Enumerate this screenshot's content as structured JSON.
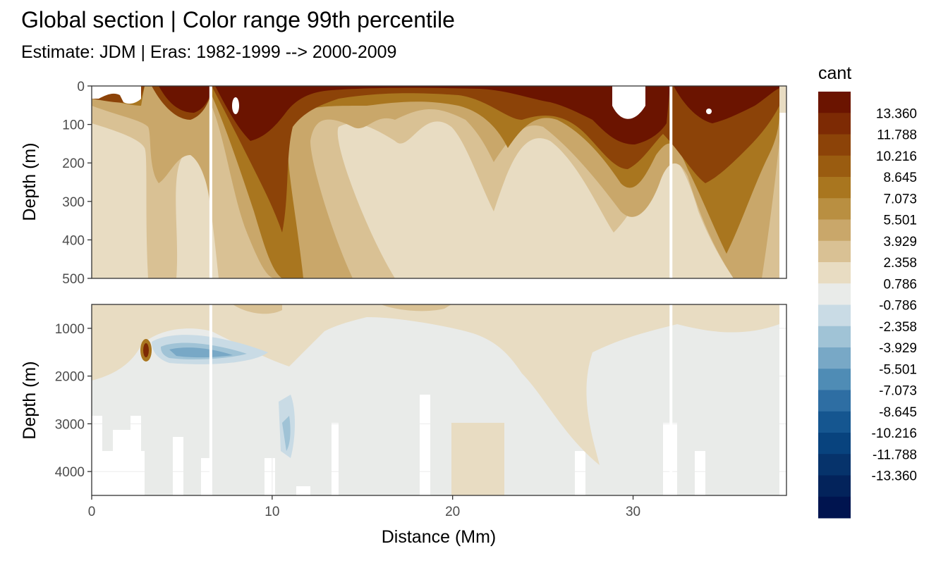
{
  "title": "Global section | Color range 99th percentile",
  "subtitle": "Estimate: JDM  | Eras: 1982-1999 --> 2000-2009",
  "chart_data": {
    "type": "heatmap",
    "x": {
      "label": "Distance (Mm)",
      "range": [
        0,
        38.5
      ],
      "ticks": [
        0,
        10,
        20,
        30
      ],
      "tick_labels": [
        "0",
        "10",
        "20",
        "30"
      ]
    },
    "panels": [
      {
        "name": "upper",
        "ylabel": "Depth (m)",
        "yrange": [
          0,
          500
        ],
        "ticks": [
          0,
          100,
          200,
          300,
          400,
          500
        ],
        "tick_labels": [
          "0",
          "100",
          "200",
          "300",
          "400",
          "500"
        ]
      },
      {
        "name": "lower",
        "ylabel": "Depth (m)",
        "yrange": [
          500,
          4500
        ],
        "ticks": [
          1000,
          2000,
          3000,
          4000
        ],
        "tick_labels": [
          "1000",
          "2000",
          "3000",
          "4000"
        ]
      }
    ],
    "section_breaks_mm": [
      6.6,
      32.1
    ],
    "legend": {
      "title": "cant",
      "position": "right",
      "colors": [
        "#6b1400",
        "#7d2a04",
        "#8c4308",
        "#9a5c10",
        "#a9761f",
        "#b98f41",
        "#c9a76a",
        "#d9c194",
        "#e8dcc2",
        "#e9ebe9",
        "#c9dbe5",
        "#a0c3d6",
        "#78a8c6",
        "#4f8cb5",
        "#2e6ea3",
        "#155690",
        "#08437e",
        "#06336b",
        "#03235b",
        "#00144f"
      ],
      "labels": [
        "13.360",
        "11.788",
        "10.216",
        "8.645",
        "7.073",
        "5.501",
        "3.929",
        "2.358",
        "0.786",
        "-0.786",
        "-2.358",
        "-3.929",
        "-5.501",
        "-7.073",
        "-8.645",
        "-10.216",
        "-11.788",
        "-13.360"
      ]
    },
    "upper_profile": {
      "x": [
        0,
        1.5,
        2.8,
        3.5,
        5,
        6.6,
        7,
        8,
        9,
        10,
        11,
        12,
        13,
        15,
        17,
        19,
        20,
        21,
        22,
        23,
        24,
        25,
        26,
        27,
        28,
        29,
        30,
        31,
        32.1,
        33,
        34,
        35,
        36,
        37,
        38.5
      ],
      "cant_surface": [
        11,
        10,
        9,
        8.5,
        8,
        8,
        13,
        15,
        14,
        12,
        11,
        10,
        9,
        8,
        8,
        9,
        10,
        9,
        8,
        9,
        9,
        10,
        10,
        11,
        11,
        12,
        11,
        10,
        13,
        14,
        13,
        11,
        9,
        7,
        6
      ]
    },
    "lower_features": [
      {
        "x": 3,
        "depth": 1500,
        "cant": 10
      },
      {
        "x": 5,
        "depth": 1600,
        "cant": -3
      }
    ]
  }
}
